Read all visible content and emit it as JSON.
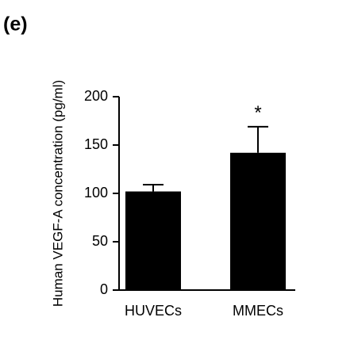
{
  "panel_label": "(e)",
  "chart_data": {
    "type": "bar",
    "y_label": "Human VEGF-A concentration (pg/ml)",
    "categories": [
      "HUVECs",
      "MMECs"
    ],
    "values": [
      102,
      142
    ],
    "errors": [
      7,
      27
    ],
    "annotation": "*",
    "color": "#000000",
    "ylim": [
      0,
      200
    ],
    "yticks": [
      0,
      50,
      100,
      150,
      200
    ]
  }
}
